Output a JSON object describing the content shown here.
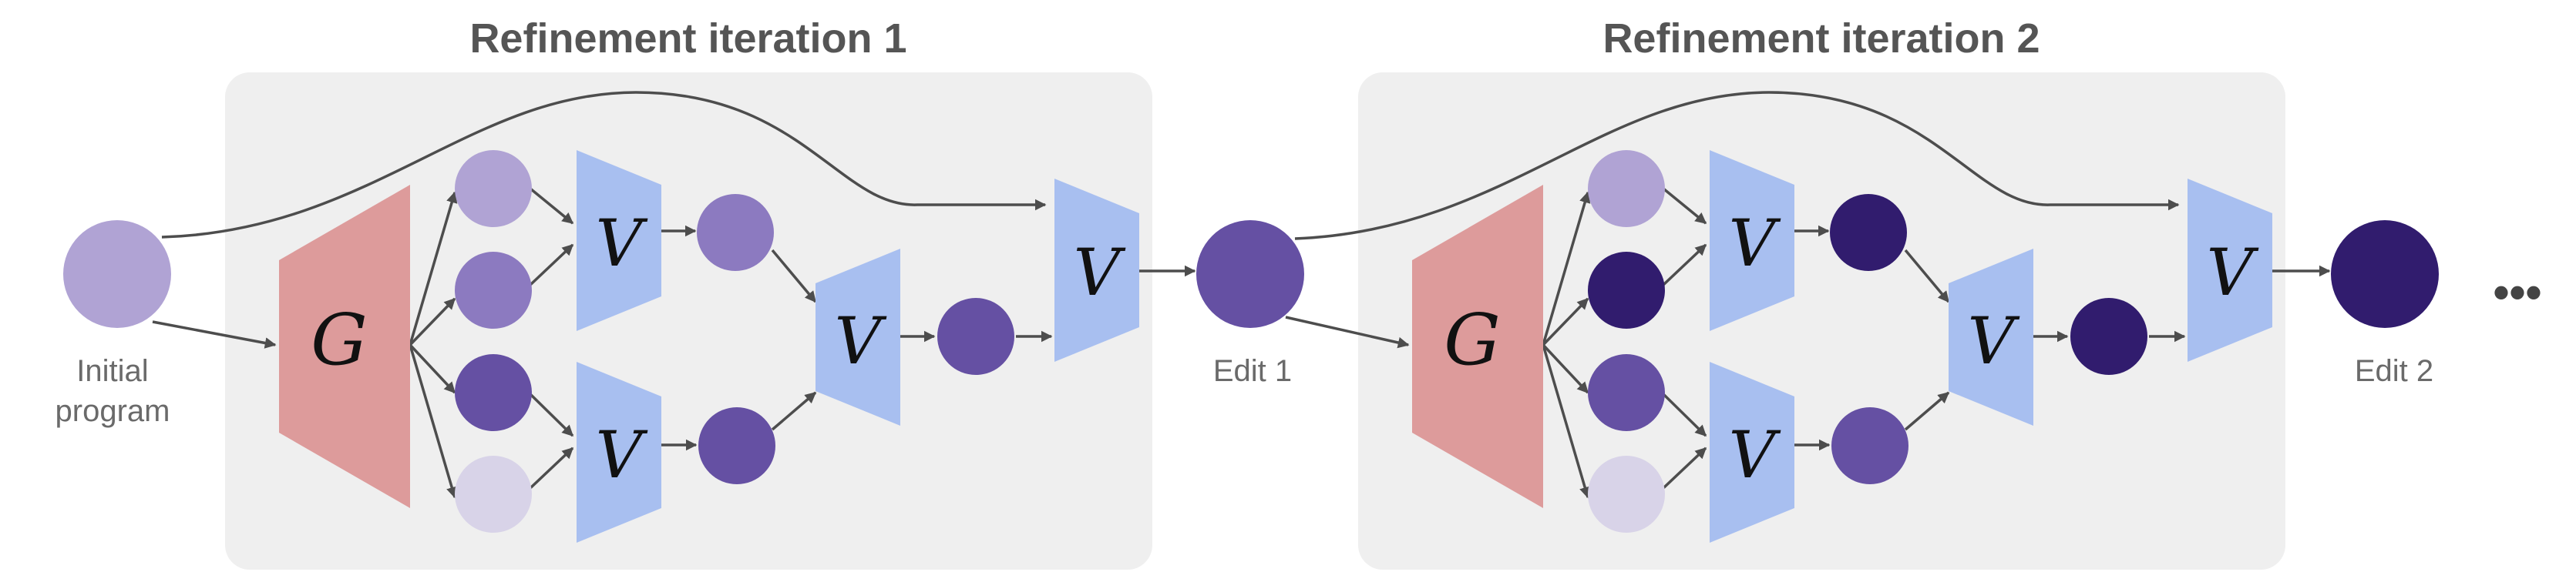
{
  "panels": [
    {
      "title": "Refinement iteration 1"
    },
    {
      "title": "Refinement iteration 2"
    }
  ],
  "labels": {
    "initial_line1": "Initial",
    "initial_line2": "program",
    "edit1": "Edit 1",
    "edit2": "Edit 2",
    "continuation": "•••"
  },
  "symbols": {
    "generator": "G",
    "verifier": "V"
  },
  "colors": {
    "panel_bg": "#efefef",
    "generator": "#dd9b9b",
    "verifier": "#a8bff0",
    "edge": "#4d4d4d",
    "node_palest": "#d8d3e8",
    "node_pale": "#b0a3d4",
    "node_light": "#8c7ac0",
    "node_mid": "#6550a3",
    "node_dark": "#311c6e"
  }
}
